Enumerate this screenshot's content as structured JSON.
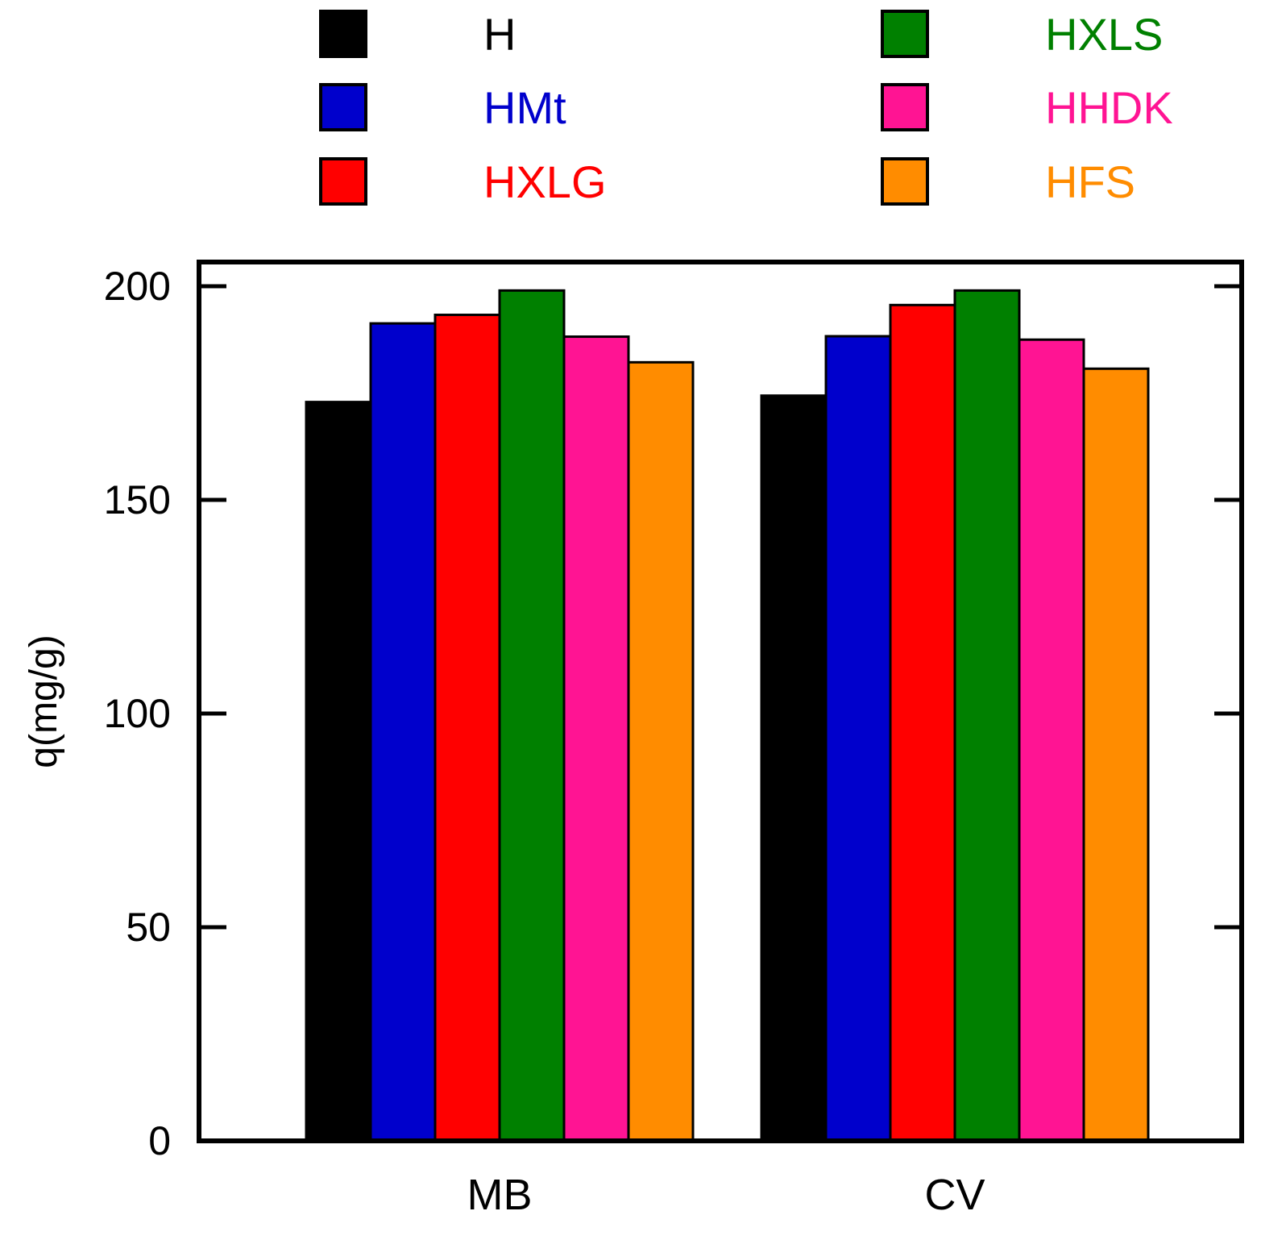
{
  "chart_data": {
    "type": "bar",
    "title": "",
    "xlabel": "",
    "ylabel": "q(mg/g)",
    "ylim": [
      0,
      200
    ],
    "yticks": [
      0,
      50,
      100,
      150,
      200
    ],
    "categories": [
      "MB",
      "CV"
    ],
    "grid": false,
    "legend_position": "top",
    "series": [
      {
        "name": "H",
        "color": "#000000",
        "values": [
          172.9,
          174.4
        ]
      },
      {
        "name": "HMt",
        "color": "#0000cc",
        "values": [
          191.3,
          188.3
        ]
      },
      {
        "name": "HXLG",
        "color": "#ff0000",
        "values": [
          193.3,
          195.6
        ]
      },
      {
        "name": "HXLS",
        "color": "#008000",
        "values": [
          199.0,
          199.0
        ]
      },
      {
        "name": "HHDK",
        "color": "#ff1493",
        "values": [
          188.2,
          187.5
        ]
      },
      {
        "name": "HFS",
        "color": "#ff8c00",
        "values": [
          182.2,
          180.7
        ]
      }
    ]
  }
}
